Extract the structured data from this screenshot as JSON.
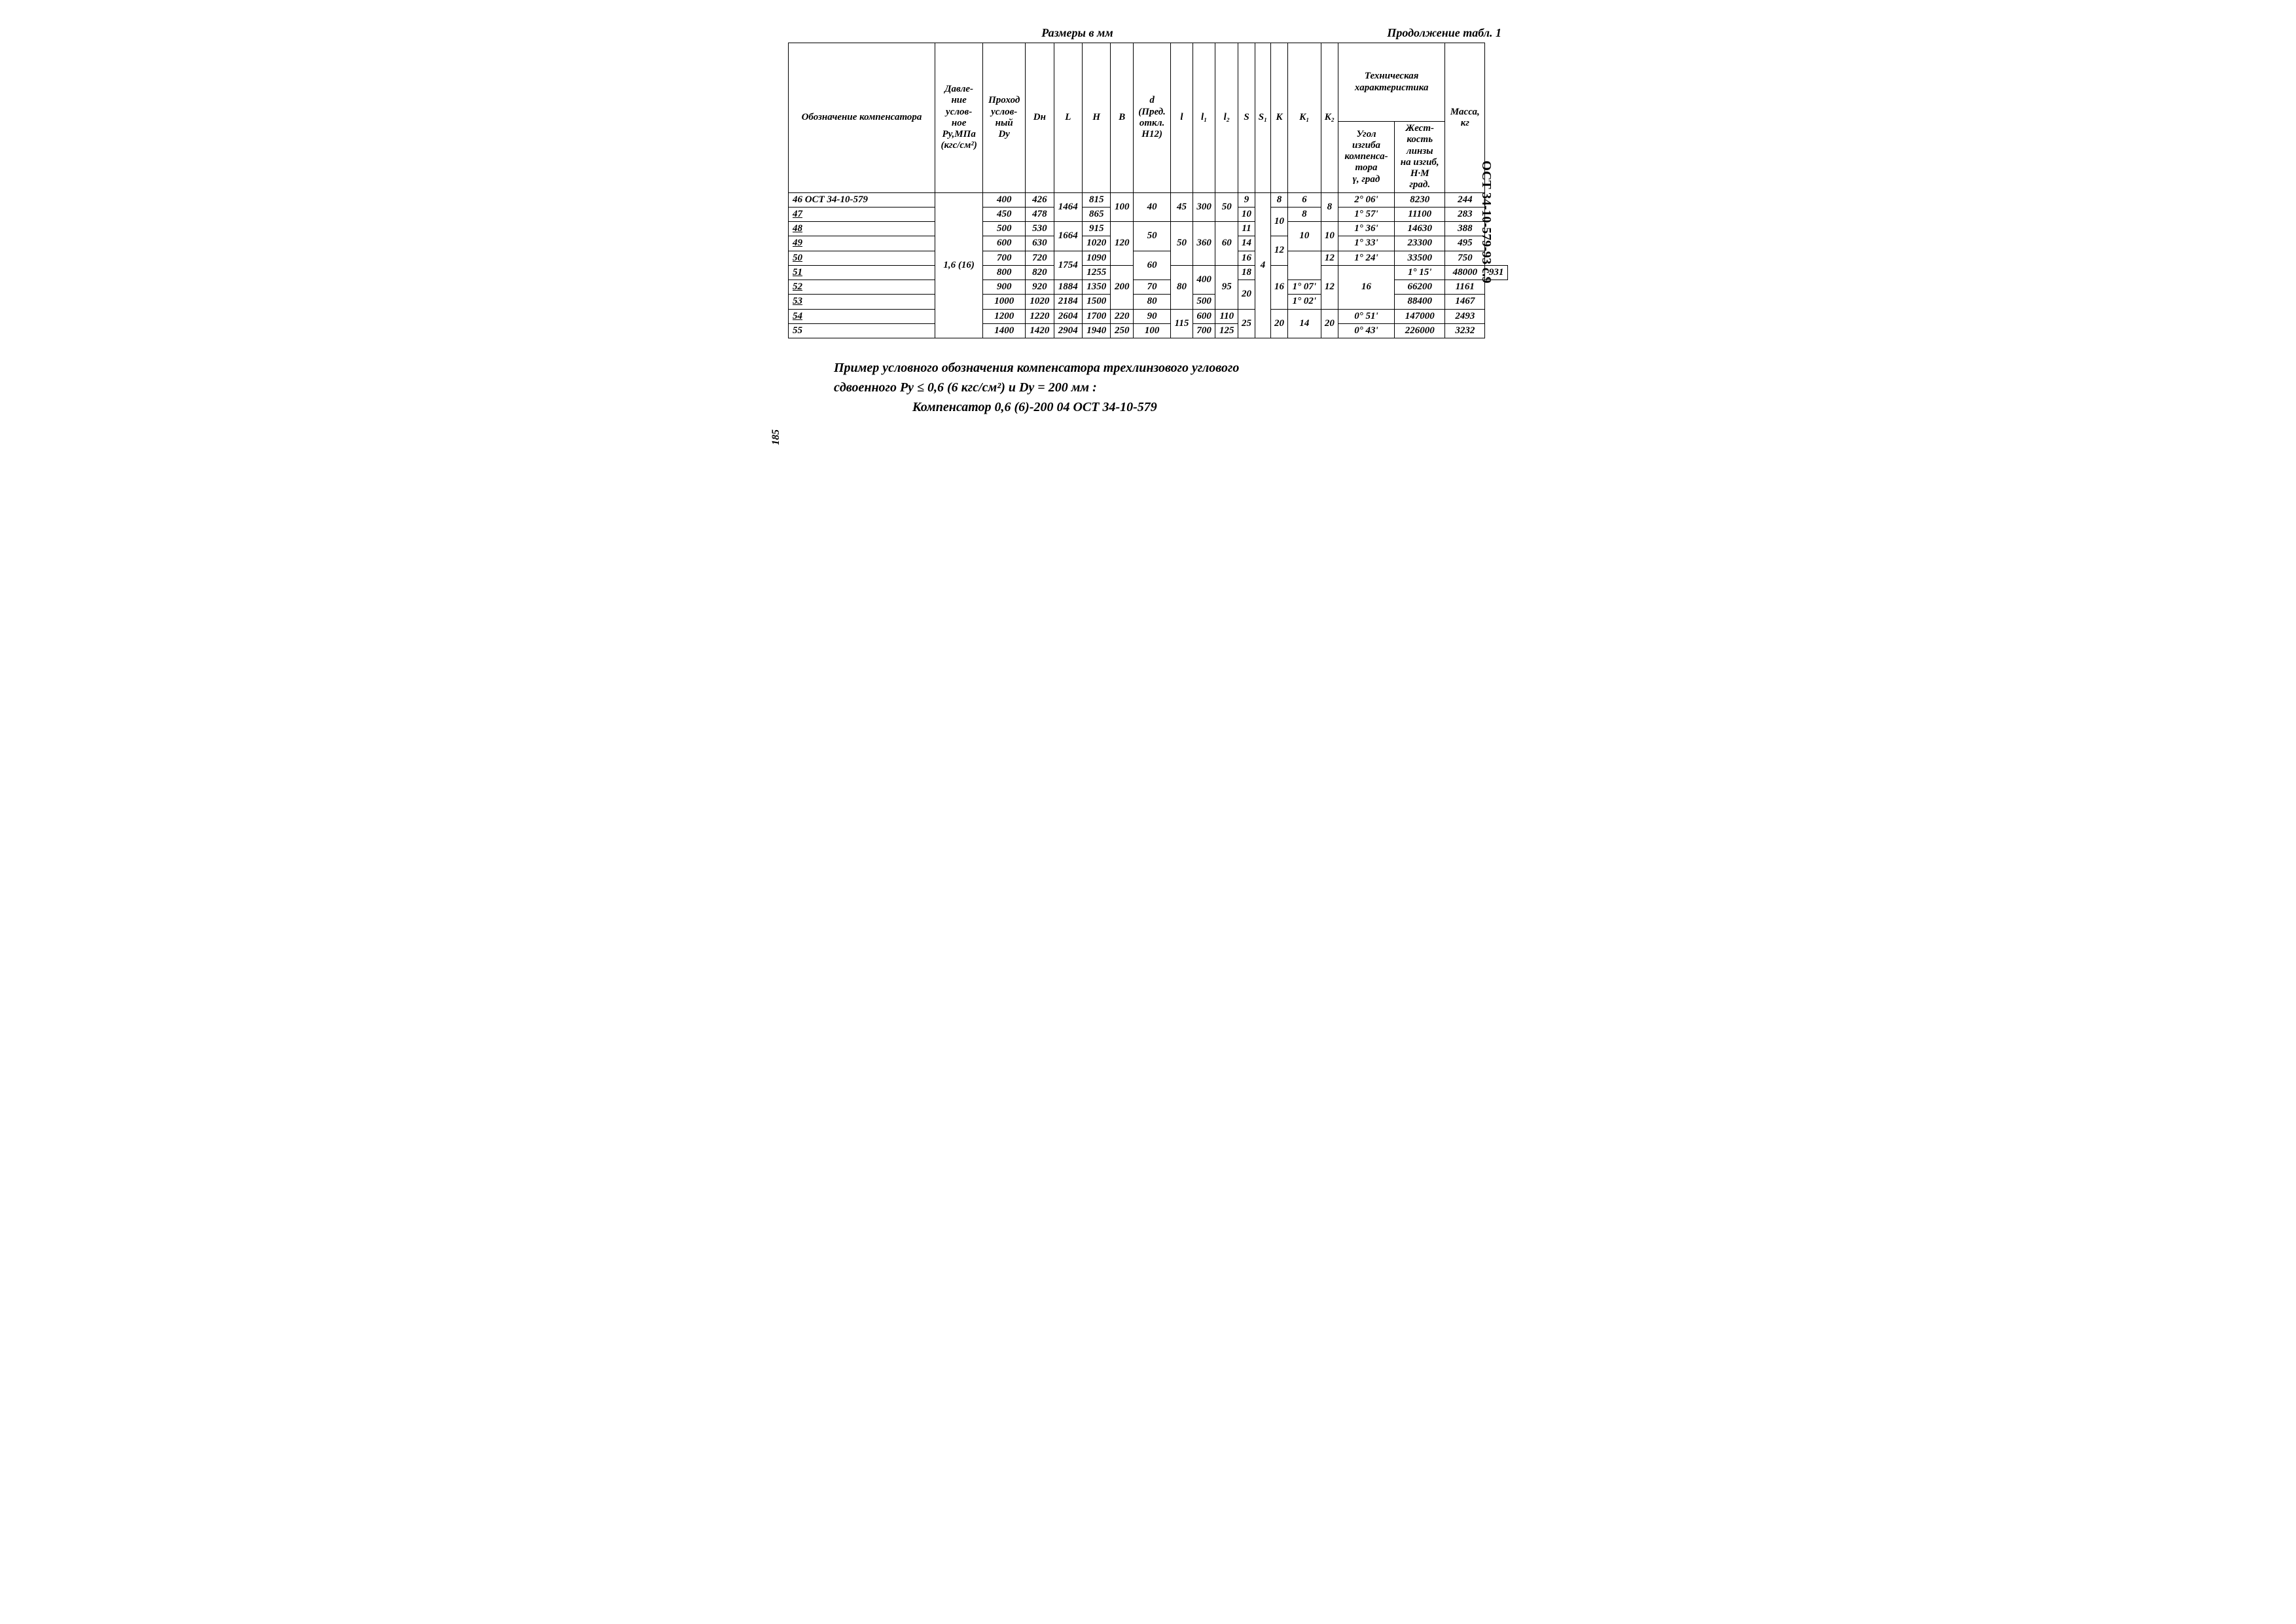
{
  "top": {
    "units": "Размеры в мм",
    "continuation": "Продолжение табл. 1"
  },
  "headers": {
    "designation": "Обозначение компенсатора",
    "pressure": "Давле-\nние\nуслов-\nное\nРу,МПа\n(кгс/см²)",
    "passage": "Проход\nуслов-\nный\nDу",
    "Dn": "Dн",
    "L": "L",
    "H": "H",
    "B": "B",
    "d": "d\n(Пред.\nоткл.\nН12)",
    "l": "l",
    "l1": "l₁",
    "l2": "l₂",
    "S": "S",
    "S1": "S₁",
    "K": "K",
    "K1": "K₁",
    "K2": "K₂",
    "tech_char": "Техническая\nхарактеристика",
    "angle": "Угол\nизгиба\nкомпенса-\nтора\nγ, град",
    "stiffness": "Жест-\nкость\nлинзы\nна изгиб,\nН·М\nград.",
    "mass": "Масса,\nкг"
  },
  "pressure_val": "1,6 (16)",
  "rows": [
    {
      "design": "46 ОСТ 34-10-579",
      "Dy": "400",
      "Dn": "426",
      "L": "1464",
      "H": "815",
      "B": "100",
      "d": "40",
      "l": "45",
      "l1": "300",
      "l2": "50",
      "S": "9",
      "S1": "4",
      "K": "8",
      "K1": "6",
      "K2": "8",
      "angle": "2° 06'",
      "stiff": "8230",
      "mass": "244"
    },
    {
      "design": "47",
      "Dy": "450",
      "Dn": "478",
      "L": "",
      "H": "865",
      "B": "",
      "d": "",
      "l": "",
      "l1": "",
      "l2": "",
      "S": "10",
      "S1": "",
      "K": "10",
      "K1": "8",
      "K2": "",
      "angle": "1° 57'",
      "stiff": "11100",
      "mass": "283"
    },
    {
      "design": "48",
      "Dy": "500",
      "Dn": "530",
      "L": "1664",
      "H": "915",
      "B": "120",
      "d": "50",
      "l": "50",
      "l1": "",
      "l2": "60",
      "S": "11",
      "S1": "",
      "K": "",
      "K1": "10",
      "K2": "10",
      "angle": "1° 36'",
      "stiff": "14630",
      "mass": "388"
    },
    {
      "design": "49",
      "Dy": "600",
      "Dn": "630",
      "L": "",
      "H": "1020",
      "B": "",
      "d": "",
      "l": "",
      "l1": "360",
      "l2": "",
      "S": "14",
      "S1": "",
      "K": "12",
      "K1": "",
      "K2": "",
      "angle": "1° 33'",
      "stiff": "23300",
      "mass": "495"
    },
    {
      "design": "50",
      "Dy": "700",
      "Dn": "720",
      "L": "1754",
      "H": "1090",
      "B": "",
      "d": "60",
      "l": "",
      "l1": "",
      "l2": "",
      "S": "16",
      "S1": "",
      "K": "",
      "K1": "",
      "K2": "12",
      "angle": "1° 24'",
      "stiff": "33500",
      "mass": "750"
    },
    {
      "design": "51",
      "Dy": "800",
      "Dn": "820",
      "L": "",
      "H": "1255",
      "B": "200",
      "d": "",
      "l": "80",
      "l1": "",
      "l2": "95",
      "S": "18",
      "S1": "",
      "K": "16",
      "K1": "12",
      "K2": "16",
      "angle": "1° 15'",
      "stiff": "48000",
      "mass": "931"
    },
    {
      "design": "52",
      "Dy": "900",
      "Dn": "920",
      "L": "1884",
      "H": "1350",
      "B": "",
      "d": "70",
      "l": "",
      "l1": "400",
      "l2": "",
      "S": "20",
      "S1": "",
      "K": "",
      "K1": "",
      "K2": "",
      "angle": "1° 07'",
      "stiff": "66200",
      "mass": "1161"
    },
    {
      "design": "53",
      "Dy": "1000",
      "Dn": "1020",
      "L": "2184",
      "H": "1500",
      "B": "",
      "d": "80",
      "l": "",
      "l1": "500",
      "l2": "",
      "S": "",
      "S1": "",
      "K": "",
      "K1": "",
      "K2": "",
      "angle": "1° 02'",
      "stiff": "88400",
      "mass": "1467"
    },
    {
      "design": "54",
      "Dy": "1200",
      "Dn": "1220",
      "L": "2604",
      "H": "1700",
      "B": "220",
      "d": "90",
      "l": "115",
      "l1": "600",
      "l2": "110",
      "S": "25",
      "S1": "",
      "K": "20",
      "K1": "14",
      "K2": "20",
      "angle": "0° 51'",
      "stiff": "147000",
      "mass": "2493"
    },
    {
      "design": "55",
      "Dy": "1400",
      "Dn": "1420",
      "L": "2904",
      "H": "1940",
      "B": "250",
      "d": "100",
      "l": "",
      "l1": "700",
      "l2": "125",
      "S": "",
      "S1": "",
      "K": "",
      "K1": "",
      "K2": "",
      "angle": "0° 43'",
      "stiff": "226000",
      "mass": "3232"
    }
  ],
  "footer": {
    "line1": "Пример условного обозначения компенсатора трехлинзового углового",
    "line2": "сдвоенного Ру ≤ 0,6 (6 кгс/см²) и Dу = 200 мм :",
    "line3": "Компенсатор 0,6 (6)-200  04 ОСТ 34-10-579"
  },
  "side": "ОСТ 34-10-579-93 с.9",
  "pagenum": "185"
}
